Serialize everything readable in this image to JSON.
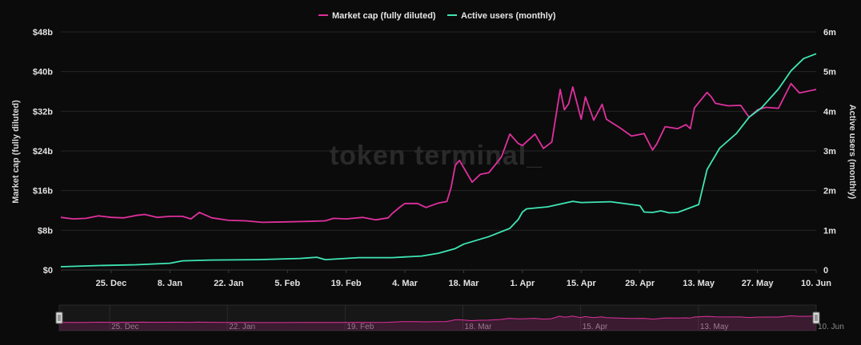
{
  "watermark": "token terminal_",
  "chart_data": {
    "type": "line",
    "legend": {
      "placement": "top-center"
    },
    "grid": {
      "horizontal": true,
      "vertical": false
    },
    "x": {
      "start": "2023-12-13",
      "end": "2024-06-10",
      "ticks": [
        {
          "date": "2023-12-25",
          "label": "25. Dec"
        },
        {
          "date": "2024-01-08",
          "label": "8. Jan"
        },
        {
          "date": "2024-01-22",
          "label": "22. Jan"
        },
        {
          "date": "2024-02-05",
          "label": "5. Feb"
        },
        {
          "date": "2024-02-19",
          "label": "19. Feb"
        },
        {
          "date": "2024-03-04",
          "label": "4. Mar"
        },
        {
          "date": "2024-03-18",
          "label": "18. Mar"
        },
        {
          "date": "2024-04-01",
          "label": "1. Apr"
        },
        {
          "date": "2024-04-15",
          "label": "15. Apr"
        },
        {
          "date": "2024-04-29",
          "label": "29. Apr"
        },
        {
          "date": "2024-05-13",
          "label": "13. May"
        },
        {
          "date": "2024-05-27",
          "label": "27. May"
        },
        {
          "date": "2024-06-10",
          "label": "10. Jun"
        }
      ]
    },
    "y_left": {
      "label": "Market cap (fully diluted)",
      "unit": "billion USD",
      "range": [
        0,
        48
      ],
      "ticks": [
        0,
        8,
        16,
        24,
        32,
        40,
        48
      ],
      "tick_labels": [
        "$0",
        "$8b",
        "$16b",
        "$24b",
        "$32b",
        "$40b",
        "$48b"
      ]
    },
    "y_right": {
      "label": "Active users (monthly)",
      "unit": "million",
      "range": [
        0,
        6
      ],
      "ticks": [
        0,
        1,
        2,
        3,
        4,
        5,
        6
      ],
      "tick_labels": [
        "0",
        "1m",
        "2m",
        "3m",
        "4m",
        "5m",
        "6m"
      ]
    },
    "series": [
      {
        "name": "Market cap (fully diluted)",
        "axis": "left",
        "color": "#e0309e",
        "points": [
          [
            "2023-12-13",
            10.6
          ],
          [
            "2023-12-16",
            10.3
          ],
          [
            "2023-12-19",
            10.4
          ],
          [
            "2023-12-22",
            10.9
          ],
          [
            "2023-12-25",
            10.6
          ],
          [
            "2023-12-28",
            10.5
          ],
          [
            "2023-12-31",
            11.0
          ],
          [
            "2024-01-02",
            11.2
          ],
          [
            "2024-01-05",
            10.6
          ],
          [
            "2024-01-08",
            10.8
          ],
          [
            "2024-01-11",
            10.8
          ],
          [
            "2024-01-13",
            10.3
          ],
          [
            "2024-01-15",
            11.6
          ],
          [
            "2024-01-18",
            10.5
          ],
          [
            "2024-01-22",
            10.0
          ],
          [
            "2024-01-26",
            9.9
          ],
          [
            "2024-01-30",
            9.6
          ],
          [
            "2024-02-05",
            9.7
          ],
          [
            "2024-02-10",
            9.8
          ],
          [
            "2024-02-14",
            9.9
          ],
          [
            "2024-02-16",
            10.4
          ],
          [
            "2024-02-19",
            10.3
          ],
          [
            "2024-02-23",
            10.6
          ],
          [
            "2024-02-26",
            10.1
          ],
          [
            "2024-02-29",
            10.5
          ],
          [
            "2024-03-01",
            11.4
          ],
          [
            "2024-03-03",
            12.8
          ],
          [
            "2024-03-04",
            13.4
          ],
          [
            "2024-03-07",
            13.4
          ],
          [
            "2024-03-09",
            12.6
          ],
          [
            "2024-03-12",
            13.5
          ],
          [
            "2024-03-14",
            13.8
          ],
          [
            "2024-03-15",
            16.6
          ],
          [
            "2024-03-16",
            21.1
          ],
          [
            "2024-03-17",
            22.1
          ],
          [
            "2024-03-20",
            17.7
          ],
          [
            "2024-03-22",
            19.3
          ],
          [
            "2024-03-24",
            19.6
          ],
          [
            "2024-03-27",
            22.8
          ],
          [
            "2024-03-29",
            27.4
          ],
          [
            "2024-03-31",
            25.5
          ],
          [
            "2024-04-01",
            25.1
          ],
          [
            "2024-04-04",
            27.4
          ],
          [
            "2024-04-06",
            24.5
          ],
          [
            "2024-04-08",
            25.8
          ],
          [
            "2024-04-10",
            36.4
          ],
          [
            "2024-04-11",
            32.3
          ],
          [
            "2024-04-12",
            33.5
          ],
          [
            "2024-04-13",
            36.9
          ],
          [
            "2024-04-15",
            30.4
          ],
          [
            "2024-04-16",
            34.9
          ],
          [
            "2024-04-18",
            30.2
          ],
          [
            "2024-04-20",
            33.4
          ],
          [
            "2024-04-21",
            30.4
          ],
          [
            "2024-04-24",
            28.8
          ],
          [
            "2024-04-27",
            27.0
          ],
          [
            "2024-04-30",
            27.5
          ],
          [
            "2024-05-02",
            24.2
          ],
          [
            "2024-05-03",
            25.4
          ],
          [
            "2024-05-05",
            28.9
          ],
          [
            "2024-05-08",
            28.5
          ],
          [
            "2024-05-10",
            29.3
          ],
          [
            "2024-05-11",
            28.5
          ],
          [
            "2024-05-12",
            32.7
          ],
          [
            "2024-05-15",
            35.8
          ],
          [
            "2024-05-16",
            34.9
          ],
          [
            "2024-05-17",
            33.6
          ],
          [
            "2024-05-20",
            33.1
          ],
          [
            "2024-05-23",
            33.2
          ],
          [
            "2024-05-25",
            30.8
          ],
          [
            "2024-05-27",
            32.3
          ],
          [
            "2024-05-29",
            32.8
          ],
          [
            "2024-06-01",
            32.6
          ],
          [
            "2024-06-04",
            37.6
          ],
          [
            "2024-06-06",
            35.7
          ],
          [
            "2024-06-10",
            36.4
          ]
        ]
      },
      {
        "name": "Active users (monthly)",
        "axis": "right",
        "color": "#3fe6b4",
        "points": [
          [
            "2023-12-13",
            0.08
          ],
          [
            "2023-12-22",
            0.11
          ],
          [
            "2023-12-31",
            0.13
          ],
          [
            "2024-01-08",
            0.17
          ],
          [
            "2024-01-11",
            0.23
          ],
          [
            "2024-01-18",
            0.25
          ],
          [
            "2024-01-29",
            0.26
          ],
          [
            "2024-02-08",
            0.29
          ],
          [
            "2024-02-12",
            0.32
          ],
          [
            "2024-02-14",
            0.26
          ],
          [
            "2024-02-22",
            0.31
          ],
          [
            "2024-03-01",
            0.31
          ],
          [
            "2024-03-08",
            0.35
          ],
          [
            "2024-03-12",
            0.42
          ],
          [
            "2024-03-16",
            0.54
          ],
          [
            "2024-03-18",
            0.65
          ],
          [
            "2024-03-24",
            0.84
          ],
          [
            "2024-03-29",
            1.05
          ],
          [
            "2024-03-31",
            1.27
          ],
          [
            "2024-04-01",
            1.46
          ],
          [
            "2024-04-02",
            1.54
          ],
          [
            "2024-04-07",
            1.59
          ],
          [
            "2024-04-13",
            1.73
          ],
          [
            "2024-04-15",
            1.7
          ],
          [
            "2024-04-22",
            1.72
          ],
          [
            "2024-04-29",
            1.62
          ],
          [
            "2024-04-30",
            1.46
          ],
          [
            "2024-05-02",
            1.45
          ],
          [
            "2024-05-04",
            1.49
          ],
          [
            "2024-05-06",
            1.44
          ],
          [
            "2024-05-08",
            1.45
          ],
          [
            "2024-05-13",
            1.65
          ],
          [
            "2024-05-15",
            2.53
          ],
          [
            "2024-05-18",
            3.07
          ],
          [
            "2024-05-22",
            3.44
          ],
          [
            "2024-05-25",
            3.85
          ],
          [
            "2024-05-28",
            4.09
          ],
          [
            "2024-06-01",
            4.56
          ],
          [
            "2024-06-04",
            5.02
          ],
          [
            "2024-06-07",
            5.33
          ],
          [
            "2024-06-10",
            5.45
          ]
        ]
      }
    ],
    "navigator": {
      "ticks": [
        {
          "date": "2023-12-25",
          "label": "25. Dec"
        },
        {
          "date": "2024-01-22",
          "label": "22. Jan"
        },
        {
          "date": "2024-02-19",
          "label": "19. Feb"
        },
        {
          "date": "2024-03-18",
          "label": "18. Mar"
        },
        {
          "date": "2024-04-15",
          "label": "15. Apr"
        },
        {
          "date": "2024-05-13",
          "label": "13. May"
        },
        {
          "date": "2024-06-10",
          "label": "10. Jun"
        }
      ],
      "range": [
        "2023-12-13",
        "2024-06-10"
      ]
    }
  }
}
